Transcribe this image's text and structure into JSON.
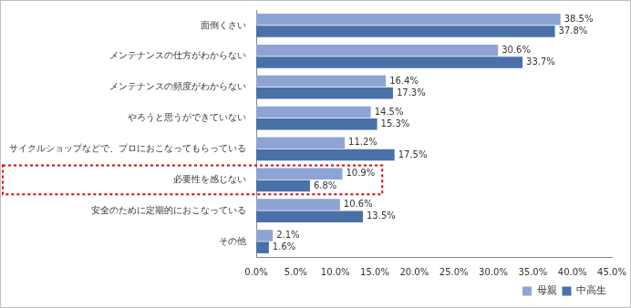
{
  "chart_data": {
    "type": "bar",
    "orientation": "horizontal",
    "categories": [
      "面倒くさい",
      "メンテナンスの仕方がわからない",
      "メンテナンスの頻度がわからない",
      "やろうと思うができていない",
      "サイクルショップなどで、プロにおこなってもらっている",
      "必要性を感じない",
      "安全のために定期的におこなっている",
      "その他"
    ],
    "series": [
      {
        "name": "母親",
        "color": "#8ea4d4",
        "values": [
          38.5,
          30.6,
          16.4,
          14.5,
          11.2,
          10.9,
          10.6,
          2.1
        ],
        "value_labels": [
          "38.5%",
          "30.6%",
          "16.4%",
          "14.5%",
          "11.2%",
          "10.9%",
          "10.6%",
          "2.1%"
        ]
      },
      {
        "name": "中高生",
        "color": "#4a70a8",
        "values": [
          37.8,
          33.7,
          17.3,
          15.3,
          17.5,
          6.8,
          13.5,
          1.6
        ],
        "value_labels": [
          "37.8%",
          "33.7%",
          "17.3%",
          "15.3%",
          "17.5%",
          "6.8%",
          "13.5%",
          "1.6%"
        ]
      }
    ],
    "xlim": [
      0,
      45
    ],
    "xticks": [
      {
        "value": 0,
        "label": "0.0%"
      },
      {
        "value": 5,
        "label": "5.0%"
      },
      {
        "value": 10,
        "label": "10.0%"
      },
      {
        "value": 15,
        "label": "15.0%"
      },
      {
        "value": 20,
        "label": "20.0%"
      },
      {
        "value": 25,
        "label": "25.0%"
      },
      {
        "value": 30,
        "label": "30.0%"
      },
      {
        "value": 35,
        "label": "35.0%"
      },
      {
        "value": 40,
        "label": "40.0%"
      },
      {
        "value": 45,
        "label": "45.0%"
      }
    ],
    "grid": false,
    "data_labels": true,
    "legend": "bottom-right"
  }
}
